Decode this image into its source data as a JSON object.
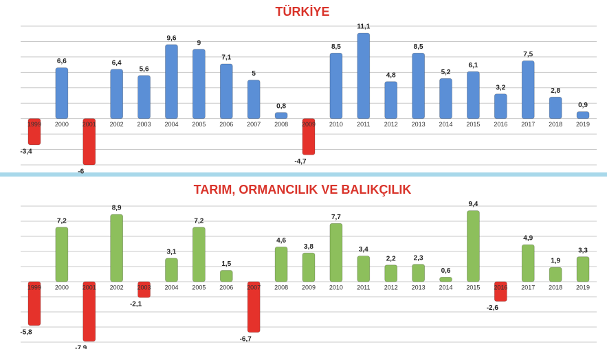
{
  "chart_data": [
    {
      "type": "bar",
      "title": "TÜRKİYE",
      "categories": [
        "1999",
        "2000",
        "2001",
        "2002",
        "2003",
        "2004",
        "2005",
        "2006",
        "2007",
        "2008",
        "2009",
        "2010",
        "2011",
        "2012",
        "2013",
        "2014",
        "2015",
        "2016",
        "2017",
        "2018",
        "2019"
      ],
      "values": [
        -3.4,
        6.6,
        -6,
        6.4,
        5.6,
        9.6,
        9,
        7.1,
        5,
        0.8,
        -4.7,
        8.5,
        11.1,
        4.8,
        8.5,
        5.2,
        6.1,
        3.2,
        7.5,
        2.8,
        0.9
      ],
      "value_labels": [
        "-3,4",
        "6,6",
        "-6",
        "6,4",
        "5,6",
        "9,6",
        "9",
        "7,1",
        "5",
        "0,8",
        "-4,7",
        "8,5",
        "11,1",
        "4,8",
        "8,5",
        "5,2",
        "6,1",
        "3,2",
        "7,5",
        "2,8",
        "0,9"
      ],
      "color": "#5b8fd6",
      "negative_color": "#e5322b",
      "ylim": [
        -6,
        12
      ],
      "yticks": [
        -6,
        -4,
        -2,
        0,
        2,
        4,
        6,
        8,
        10,
        12
      ],
      "grid": true
    },
    {
      "type": "bar",
      "title": "TARIM, ORMANCILIK VE BALIKÇILIK",
      "categories": [
        "1999",
        "2000",
        "2001",
        "2002",
        "2003",
        "2004",
        "2005",
        "2006",
        "2007",
        "2008",
        "2009",
        "2010",
        "2011",
        "2012",
        "2013",
        "2014",
        "2015",
        "2016",
        "2017",
        "2018",
        "2019"
      ],
      "values": [
        -5.8,
        7.2,
        -7.9,
        8.9,
        -2.1,
        3.1,
        7.2,
        1.5,
        -6.7,
        4.6,
        3.8,
        7.7,
        3.4,
        2.2,
        2.3,
        0.6,
        9.4,
        -2.6,
        4.9,
        1.9,
        3.3
      ],
      "value_labels": [
        "-5,8",
        "7,2",
        "-7,9",
        "8,9",
        "-2,1",
        "3,1",
        "7,2",
        "1,5",
        "-6,7",
        "4,6",
        "3,8",
        "7,7",
        "3,4",
        "2,2",
        "2,3",
        "0,6",
        "9,4",
        "-2,6",
        "4,9",
        "1,9",
        "3,3"
      ],
      "color": "#8dbf5c",
      "negative_color": "#e5322b",
      "ylim": [
        -8,
        10
      ],
      "yticks": [
        -8,
        -6,
        -4,
        -2,
        0,
        2,
        4,
        6,
        8,
        10
      ],
      "grid": true
    }
  ]
}
